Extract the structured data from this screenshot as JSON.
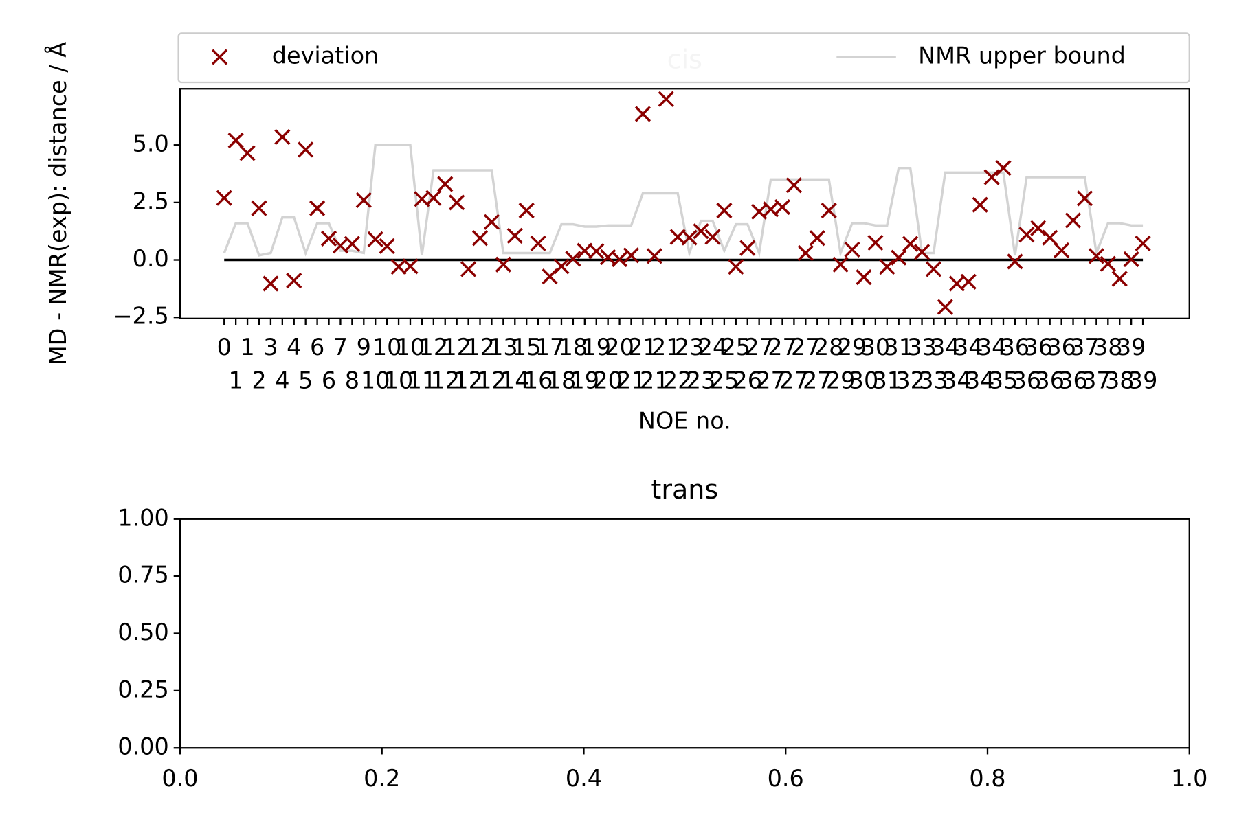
{
  "chart_data": [
    {
      "type": "scatter",
      "title": "cis",
      "xlabel": "NOE no.",
      "ylabel": "MD - NMR(exp): distance / Å",
      "categories": [
        "0",
        "1",
        "1",
        "2",
        "3",
        "4",
        "4",
        "5",
        "6",
        "6",
        "7",
        "8",
        "9",
        "10",
        "10",
        "10",
        "10",
        "11",
        "12",
        "12",
        "12",
        "12",
        "12",
        "12",
        "13",
        "14",
        "15",
        "16",
        "17",
        "18",
        "18",
        "19",
        "19",
        "20",
        "20",
        "21",
        "21",
        "21",
        "21",
        "22",
        "23",
        "23",
        "24",
        "25",
        "25",
        "26",
        "27",
        "27",
        "27",
        "27",
        "27",
        "27",
        "28",
        "29",
        "29",
        "30",
        "30",
        "31",
        "31",
        "32",
        "33",
        "33",
        "34",
        "34",
        "34",
        "34",
        "34",
        "35",
        "36",
        "36",
        "36",
        "36",
        "36",
        "36",
        "37",
        "37",
        "38",
        "38",
        "39",
        "39"
      ],
      "series": [
        {
          "name": "deviation",
          "color": "#8b0000",
          "marker": "x",
          "values": [
            2.7,
            5.2,
            4.65,
            2.25,
            -1.03,
            5.35,
            -0.9,
            4.8,
            2.25,
            0.93,
            0.62,
            0.7,
            2.6,
            0.9,
            0.6,
            -0.3,
            -0.28,
            2.65,
            2.7,
            3.3,
            2.5,
            -0.4,
            0.95,
            1.65,
            -0.2,
            1.05,
            2.15,
            0.72,
            -0.72,
            -0.28,
            0.05,
            0.4,
            0.38,
            0.12,
            0.03,
            0.2,
            6.35,
            0.17,
            7.0,
            1.0,
            0.97,
            1.25,
            1.0,
            2.15,
            -0.3,
            0.52,
            2.1,
            2.2,
            2.3,
            3.25,
            0.3,
            0.95,
            2.15,
            -0.2,
            0.45,
            -0.75,
            0.75,
            -0.3,
            0.1,
            0.7,
            0.35,
            -0.4,
            -2.05,
            -1.03,
            -0.95,
            2.4,
            3.6,
            4.0,
            -0.07,
            1.1,
            1.38,
            0.97,
            0.42,
            1.72,
            2.68,
            0.17,
            -0.17,
            -0.82,
            0.03,
            0.72
          ]
        },
        {
          "name": "NMR upper bound",
          "color": "#d3d3d3",
          "marker": "line",
          "values": [
            0.3,
            1.6,
            1.6,
            0.2,
            0.3,
            1.85,
            1.85,
            0.3,
            1.6,
            1.6,
            0.4,
            0.4,
            0.3,
            5.0,
            5.0,
            5.0,
            5.0,
            0.2,
            3.9,
            3.9,
            3.9,
            3.9,
            3.9,
            3.9,
            0.3,
            0.3,
            0.3,
            0.3,
            0.3,
            1.55,
            1.55,
            1.45,
            1.45,
            1.5,
            1.5,
            1.5,
            2.9,
            2.9,
            2.9,
            2.9,
            0.3,
            1.7,
            1.7,
            0.4,
            1.55,
            1.55,
            0.3,
            3.5,
            3.5,
            3.5,
            3.5,
            3.5,
            3.5,
            0.3,
            1.6,
            1.6,
            1.5,
            1.5,
            4.0,
            4.0,
            0.3,
            0.3,
            3.8,
            3.8,
            3.8,
            3.8,
            3.8,
            3.8,
            0.2,
            3.6,
            3.6,
            3.6,
            3.6,
            3.6,
            3.6,
            0.3,
            1.6,
            1.6,
            1.5,
            1.5
          ]
        }
      ],
      "reference_line": {
        "y": 0,
        "color": "#000000"
      },
      "xlim": [
        -3.8,
        83.0
      ],
      "ylim": [
        -2.55,
        7.45
      ],
      "yticks": [
        {
          "value": -2.5,
          "label": "−2.5"
        },
        {
          "value": 0,
          "label": "0.0"
        },
        {
          "value": 2.5,
          "label": "2.5"
        },
        {
          "value": 5,
          "label": "5.0"
        }
      ],
      "legend": "above"
    },
    {
      "type": "scatter",
      "title": "trans",
      "series": [],
      "xlim": [
        0,
        1
      ],
      "ylim": [
        0,
        1
      ],
      "xticks": [
        {
          "value": 0,
          "label": "0.0"
        },
        {
          "value": 0.2,
          "label": "0.2"
        },
        {
          "value": 0.4,
          "label": "0.4"
        },
        {
          "value": 0.6,
          "label": "0.6"
        },
        {
          "value": 0.8,
          "label": "0.8"
        },
        {
          "value": 1,
          "label": "1.0"
        }
      ],
      "yticks": [
        {
          "value": 0,
          "label": "0.00"
        },
        {
          "value": 0.25,
          "label": "0.25"
        },
        {
          "value": 0.5,
          "label": "0.50"
        },
        {
          "value": 0.75,
          "label": "0.75"
        },
        {
          "value": 1,
          "label": "1.00"
        }
      ]
    }
  ]
}
